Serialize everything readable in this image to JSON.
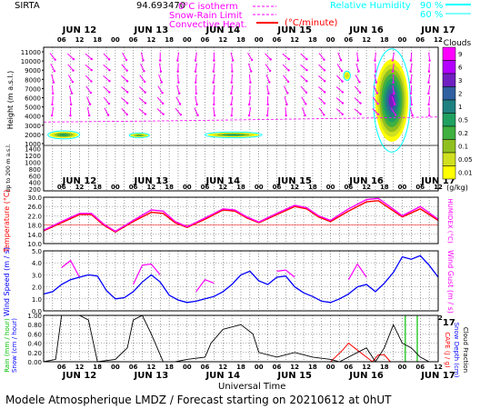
{
  "header": {
    "station": "SIRTA",
    "coords": "94.693470",
    "isotherm_label": "0°C isotherm",
    "snow_rain_label": "Snow-Rain Limit",
    "convective_label": "Convective Heat.",
    "convective_units": "(°C/minute)",
    "rh_label": "Relative Humidity",
    "rh_90": "90 %",
    "rh_60": "60 %"
  },
  "days": [
    "JUN 12",
    "JUN 13",
    "JUN 14",
    "JUN 15",
    "JUN 16",
    "JUN 17"
  ],
  "hour_labels": [
    "06",
    "12",
    "18",
    "00"
  ],
  "footer": "Modele Atmospherique LMDZ / Forecast starting on 20210612 at 0hUT",
  "universal_time": "Universal Time",
  "colors": {
    "magenta": "#ff00ff",
    "red": "#ff0000",
    "blue": "#0000ff",
    "cyan": "#00ffff",
    "green": "#00c000",
    "black": "#000000"
  },
  "chart_data": [
    {
      "type": "heatmap",
      "name": "clouds-height",
      "ylabel": "Height (m a.s.l.)",
      "yticks_upper": [
        "11000",
        "10000",
        "9000",
        "8000",
        "7000",
        "6000",
        "5000",
        "4000",
        "3000",
        "2000",
        "1000"
      ],
      "yticks_lower": [
        "1400",
        "1200",
        "1000",
        "800",
        "600",
        "400",
        "200"
      ],
      "ylabel_lower": "Up to 200 m a.s.l.",
      "legend_title": "Clouds",
      "legend_levels": [
        "9",
        "6",
        "3",
        "2",
        "1",
        "0.5",
        "0.2",
        "0.1",
        "0.05",
        "0.01"
      ],
      "legend_units": "(g/kg)",
      "legend_colors": [
        "#ff00ff",
        "#b400ff",
        "#7020c0",
        "#3060a0",
        "#208080",
        "#20a060",
        "#40b040",
        "#90c020",
        "#d0e020",
        "#ffff00"
      ],
      "cloud_patches": [
        {
          "x_start": 2.0,
          "x_end": 11.5,
          "z_start": 1600,
          "z_end": 2300,
          "max": 0.5
        },
        {
          "x_start": 29.0,
          "x_end": 35.0,
          "z_start": 1700,
          "z_end": 2100,
          "max": 0.2
        },
        {
          "x_start": 55.0,
          "x_end": 72.0,
          "z_start": 1700,
          "z_end": 2200,
          "max": 0.5
        },
        {
          "x_start": 111.0,
          "x_end": 122.0,
          "z_start": 1200,
          "z_end": 10200,
          "max": 3
        },
        {
          "x_start": 100.5,
          "x_end": 102.5,
          "z_start": 8000,
          "z_end": 8800,
          "max": 0.05
        }
      ]
    },
    {
      "type": "line",
      "name": "temperature",
      "ylabel": "Temperature (°C)",
      "ylabel_right": "HUMIDEX (°C)",
      "yticks": [
        "30.0",
        "26.0",
        "22.0",
        "18.0",
        "14.0",
        "10.0"
      ],
      "ylim": [
        10,
        30
      ],
      "x": [
        0,
        6,
        12,
        16,
        20,
        24,
        30,
        36,
        40,
        44,
        48,
        54,
        60,
        64,
        68,
        72,
        78,
        84,
        88,
        92,
        96,
        102,
        108,
        112,
        116,
        120,
        126,
        132
      ],
      "series": [
        {
          "color": "#ff0000",
          "values": [
            15.5,
            19.0,
            22.5,
            22.5,
            18.0,
            15.0,
            19.5,
            23.5,
            23.0,
            19.0,
            17.0,
            20.5,
            24.5,
            24.0,
            21.0,
            19.0,
            22.5,
            26.0,
            25.0,
            21.5,
            19.5,
            24.0,
            28.0,
            28.5,
            25.0,
            21.5,
            25.0,
            20.0
          ]
        },
        {
          "color": "#ff00ff",
          "values": [
            15.8,
            19.5,
            23.0,
            23.0,
            18.5,
            15.3,
            20.0,
            24.5,
            24.0,
            19.5,
            17.3,
            21.0,
            25.0,
            24.5,
            21.5,
            19.3,
            23.0,
            26.5,
            25.5,
            22.0,
            20.0,
            25.0,
            29.0,
            29.5,
            25.8,
            22.0,
            26.0,
            20.5
          ]
        }
      ]
    },
    {
      "type": "line",
      "name": "wind",
      "ylabel": "Wind Speed (m / s)",
      "ylabel_right": "Wind Gust (m / s)",
      "yticks": [
        "5.0",
        "4.0",
        "3.0",
        "2.0",
        "1.0",
        "0.0"
      ],
      "ylim": [
        0,
        5
      ],
      "x": [
        0,
        3,
        6,
        9,
        12,
        15,
        18,
        21,
        24,
        27,
        30,
        33,
        36,
        39,
        42,
        45,
        48,
        51,
        54,
        57,
        60,
        63,
        66,
        69,
        72,
        75,
        78,
        81,
        84,
        87,
        90,
        93,
        96,
        99,
        102,
        105,
        108,
        111,
        114,
        117,
        120,
        123,
        126,
        129,
        132
      ],
      "series": [
        {
          "name": "Wind Speed",
          "color": "#0000ff",
          "values": [
            1.4,
            1.6,
            2.2,
            2.6,
            2.8,
            3.0,
            2.9,
            1.7,
            1.0,
            1.1,
            1.6,
            2.4,
            3.0,
            2.4,
            1.3,
            0.9,
            0.7,
            0.8,
            1.0,
            1.2,
            1.6,
            2.2,
            3.0,
            3.3,
            2.5,
            2.2,
            2.8,
            2.9,
            2.0,
            1.5,
            1.2,
            0.8,
            0.7,
            1.0,
            1.4,
            2.0,
            2.2,
            1.6,
            2.3,
            3.2,
            4.5,
            4.3,
            4.6,
            3.8,
            2.8
          ]
        },
        {
          "name": "Wind Gust",
          "color": "#ff00ff",
          "values": [
            null,
            null,
            3.6,
            4.2,
            2.8,
            null,
            null,
            null,
            null,
            null,
            2.2,
            3.8,
            3.9,
            3.0,
            null,
            null,
            null,
            1.6,
            2.6,
            2.3,
            null,
            null,
            null,
            null,
            null,
            null,
            3.3,
            3.4,
            2.8,
            null,
            null,
            null,
            null,
            null,
            2.6,
            3.9,
            2.8,
            null,
            null,
            null,
            null,
            null,
            null,
            null,
            null
          ]
        }
      ]
    },
    {
      "type": "line",
      "name": "precip-cape",
      "ylabel_left": "Rain (mm / hour)",
      "ylabel_left2": "Snow (cm / hour)",
      "ylabel_right": "CAPE (J / g)",
      "ylabel_right2": "Snow Depth (cm)",
      "ylabel_right3": "Cloud Fraction",
      "yticks": [
        "1.00",
        "0.80",
        "0.60",
        "0.40",
        "0.20",
        "0.00"
      ],
      "ylim": [
        0,
        1
      ],
      "cloud_fraction": {
        "color": "#000000",
        "x": [
          0,
          4,
          6,
          9,
          12,
          15,
          18,
          24,
          28,
          30,
          33,
          36,
          40,
          44,
          48,
          54,
          56,
          60,
          66,
          70,
          72,
          78,
          84,
          90,
          96,
          99,
          102,
          105,
          108,
          111,
          114,
          117,
          120,
          123,
          126,
          129,
          132
        ],
        "values": [
          0.0,
          0.05,
          1.0,
          1.0,
          1.0,
          0.9,
          0.0,
          0.05,
          0.3,
          0.9,
          1.0,
          0.6,
          0.0,
          0.0,
          0.05,
          0.1,
          0.4,
          0.7,
          0.8,
          0.6,
          0.2,
          0.1,
          0.2,
          0.1,
          0.05,
          0.0,
          0.1,
          0.2,
          0.3,
          0.0,
          0.3,
          0.8,
          0.4,
          0.3,
          0.1,
          0.0,
          0.0
        ]
      },
      "cape": {
        "color": "#ff0000",
        "x": [
          96,
          100,
          102,
          104,
          106,
          108,
          110,
          112,
          114,
          116,
          117
        ],
        "values": [
          0.0,
          0.25,
          0.4,
          0.3,
          0.2,
          0.1,
          0.0,
          0.15,
          0.15,
          0.0,
          0.0
        ]
      },
      "rain_bars": {
        "color": "#00c000",
        "x": [
          121,
          125
        ],
        "values": [
          1.0,
          1.0
        ]
      }
    }
  ]
}
